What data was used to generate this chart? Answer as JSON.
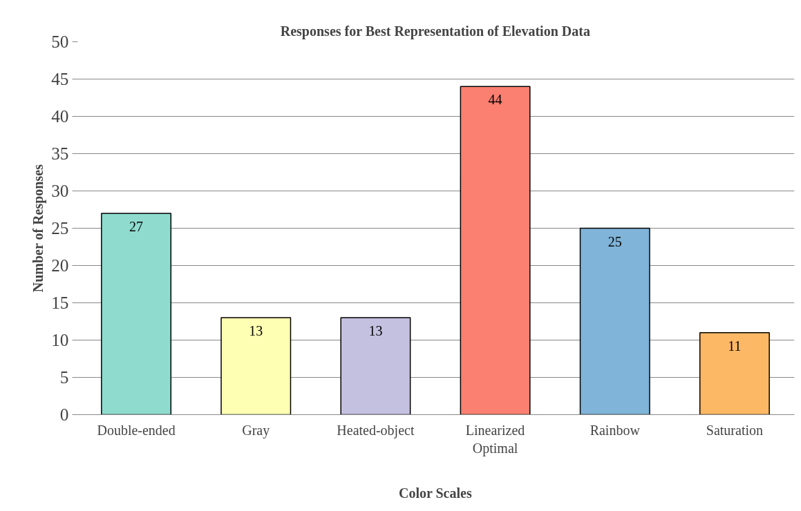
{
  "chart_data": {
    "type": "bar",
    "title": "Responses for Best Representation of Elevation Data",
    "xlabel": "Color Scales",
    "ylabel": "Number of Responses",
    "categories": [
      "Double-ended",
      "Gray",
      "Heated-object",
      "Linearized Optimal",
      "Rainbow",
      "Saturation"
    ],
    "values": [
      27,
      13,
      13,
      44,
      25,
      11
    ],
    "colors": [
      "#8fdccf",
      "#ffffb3",
      "#c4c0e0",
      "#fb8072",
      "#80b4d8",
      "#fdb866"
    ],
    "ylim": [
      0,
      50
    ],
    "yticks": [
      0,
      5,
      10,
      15,
      20,
      25,
      30,
      35,
      40,
      45,
      50
    ],
    "grid": "y",
    "data_labels": true
  }
}
